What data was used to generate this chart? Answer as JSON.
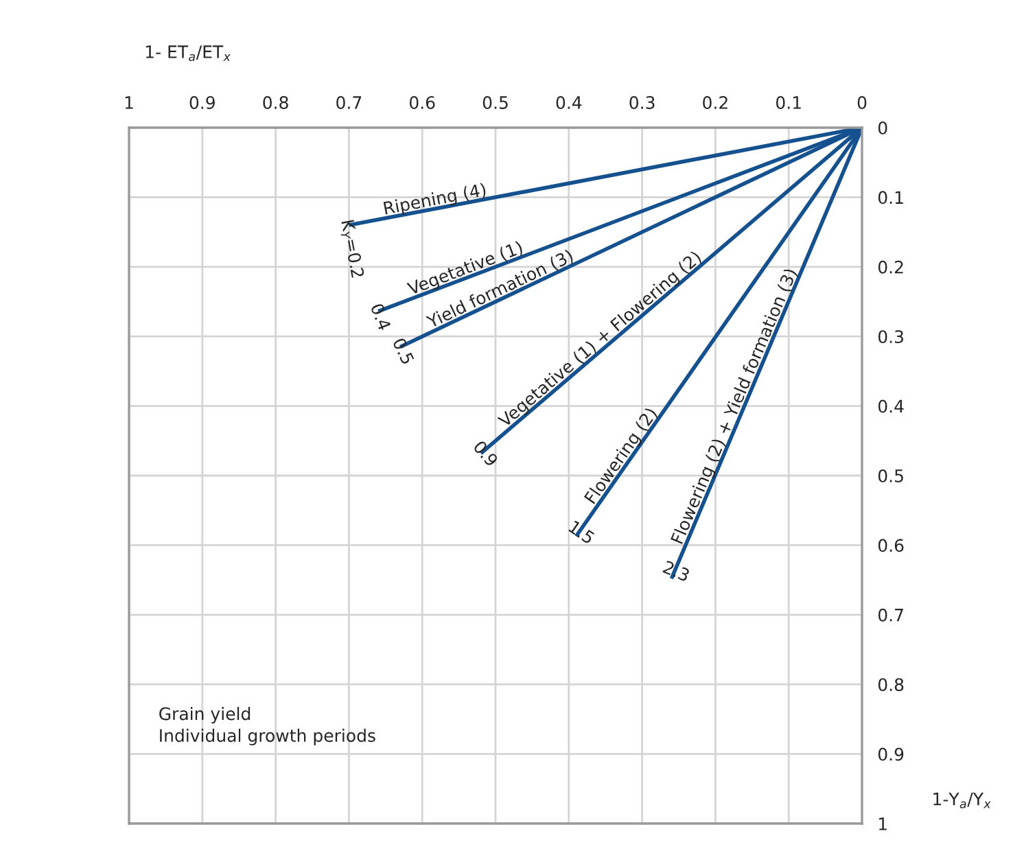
{
  "chart_data": {
    "type": "line",
    "xlabel": "1- ET$_{a}$/ET$_{x}$",
    "ylabel": "1-Y$_{a}$/Y$_{x}$",
    "xlim": [
      1,
      0
    ],
    "ylim": [
      1,
      0
    ],
    "xticks": [
      1,
      0.9,
      0.8,
      0.7,
      0.6,
      0.5,
      0.4,
      0.3,
      0.2,
      0.1,
      0
    ],
    "yticks": [
      0,
      0.1,
      0.2,
      0.3,
      0.4,
      0.5,
      0.6,
      0.7,
      0.8,
      0.9,
      1
    ],
    "grid": true,
    "legend": false,
    "marker": "none",
    "line_style": "solid",
    "series": [
      {
        "name": "Ripening (4)",
        "color": "#15508f",
        "x": [
          0,
          0.7
        ],
        "values": [
          0,
          0.14
        ]
      },
      {
        "name": "Vegetative (1)",
        "color": "#15508f",
        "x": [
          0,
          0.66
        ],
        "values": [
          0,
          0.264
        ]
      },
      {
        "name": "Yield formation (3)",
        "color": "#15508f",
        "x": [
          0,
          0.63
        ],
        "values": [
          0,
          0.315
        ]
      },
      {
        "name": "Vegetative (1) + Flowering (2)",
        "color": "#15508f",
        "x": [
          0,
          0.52
        ],
        "values": [
          0,
          0.468
        ]
      },
      {
        "name": "Flowering (2)",
        "color": "#15508f",
        "x": [
          0,
          0.39
        ],
        "values": [
          0,
          0.587
        ]
      },
      {
        "name": "Flowering (2) + Yield formation (3)",
        "color": "#15508f",
        "x": [
          0,
          0.26
        ],
        "values": [
          0,
          0.648
        ]
      }
    ],
    "annotations": [
      {
        "text": "K$_{Y}$=0.2",
        "x": 0.7,
        "y": 0.14
      },
      {
        "text": "0.4",
        "x": 0.66,
        "y": 0.264
      },
      {
        "text": "0.5",
        "x": 0.63,
        "y": 0.315
      },
      {
        "text": "0.9",
        "x": 0.52,
        "y": 0.468
      },
      {
        "text": "1.5",
        "x": 0.39,
        "y": 0.587
      },
      {
        "text": "2.3",
        "x": 0.26,
        "y": 0.648
      },
      "Grain yield\nIndividual growth periods"
    ]
  }
}
